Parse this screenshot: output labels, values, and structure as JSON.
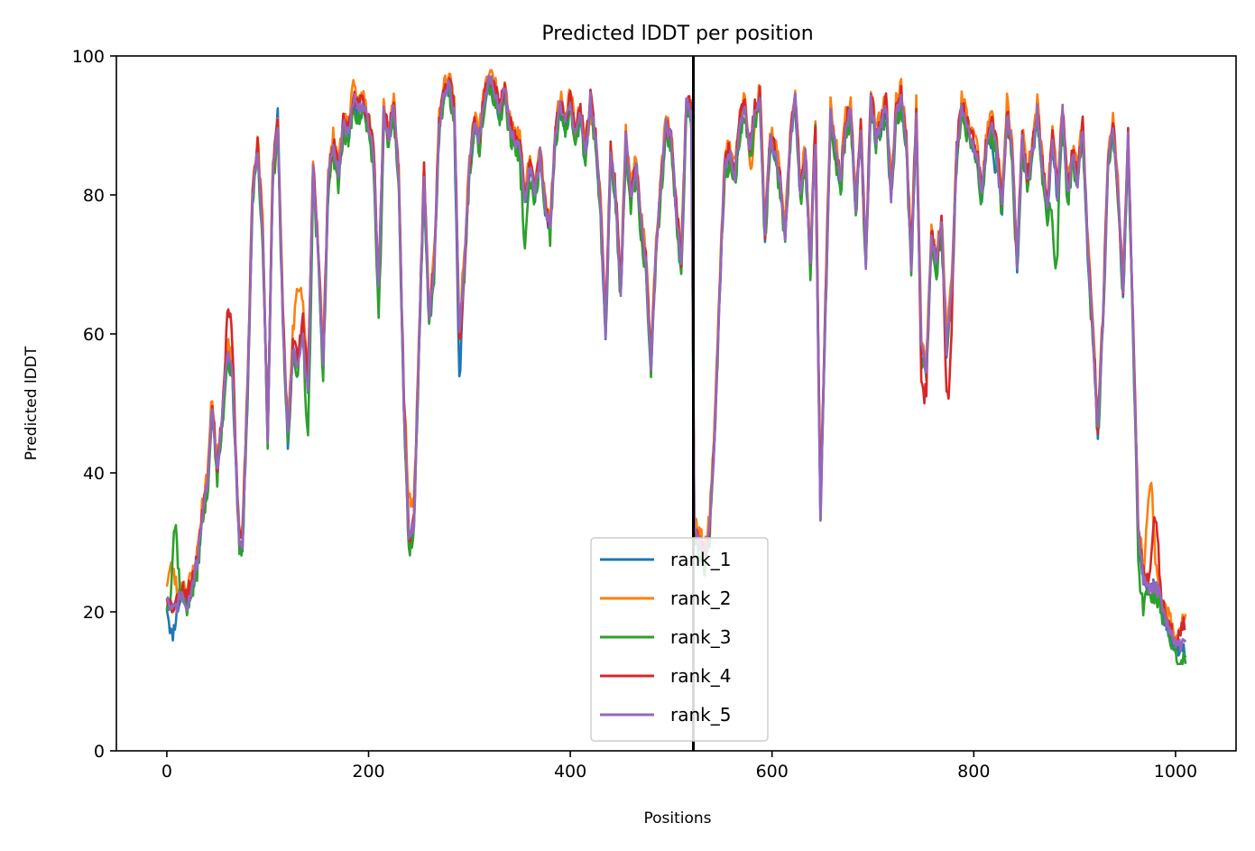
{
  "chart_data": {
    "type": "line",
    "title": "Predicted lDDT per position",
    "xlabel": "Positions",
    "ylabel": "Predicted lDDT",
    "xlim": [
      -50,
      1060
    ],
    "ylim": [
      0,
      100
    ],
    "xticks": [
      0,
      200,
      400,
      600,
      800,
      1000
    ],
    "yticks": [
      0,
      20,
      40,
      60,
      80,
      100
    ],
    "grid": false,
    "legend_position": "bottom-center",
    "chain_break": 522,
    "base_profile": [
      [
        0,
        22
      ],
      [
        5,
        20
      ],
      [
        10,
        21
      ],
      [
        15,
        23
      ],
      [
        20,
        22
      ],
      [
        25,
        24
      ],
      [
        30,
        27
      ],
      [
        35,
        34
      ],
      [
        40,
        38
      ],
      [
        45,
        50
      ],
      [
        50,
        40
      ],
      [
        55,
        48
      ],
      [
        60,
        58
      ],
      [
        65,
        55
      ],
      [
        70,
        36
      ],
      [
        72,
        30
      ],
      [
        75,
        30
      ],
      [
        80,
        52
      ],
      [
        85,
        80
      ],
      [
        90,
        87
      ],
      [
        95,
        75
      ],
      [
        100,
        45
      ],
      [
        105,
        83
      ],
      [
        110,
        90
      ],
      [
        115,
        62
      ],
      [
        120,
        45
      ],
      [
        125,
        58
      ],
      [
        130,
        56
      ],
      [
        135,
        62
      ],
      [
        140,
        52
      ],
      [
        145,
        84
      ],
      [
        150,
        72
      ],
      [
        155,
        55
      ],
      [
        160,
        82
      ],
      [
        165,
        87
      ],
      [
        170,
        83
      ],
      [
        175,
        90
      ],
      [
        180,
        89
      ],
      [
        185,
        94
      ],
      [
        190,
        92
      ],
      [
        195,
        93
      ],
      [
        200,
        90
      ],
      [
        205,
        86
      ],
      [
        210,
        66
      ],
      [
        215,
        92
      ],
      [
        220,
        88
      ],
      [
        225,
        93
      ],
      [
        230,
        82
      ],
      [
        235,
        50
      ],
      [
        240,
        30
      ],
      [
        245,
        33
      ],
      [
        250,
        58
      ],
      [
        255,
        83
      ],
      [
        260,
        62
      ],
      [
        265,
        70
      ],
      [
        270,
        90
      ],
      [
        275,
        95
      ],
      [
        280,
        96
      ],
      [
        285,
        92
      ],
      [
        290,
        60
      ],
      [
        295,
        70
      ],
      [
        300,
        84
      ],
      [
        305,
        90
      ],
      [
        310,
        88
      ],
      [
        315,
        94
      ],
      [
        320,
        97
      ],
      [
        325,
        95
      ],
      [
        330,
        92
      ],
      [
        335,
        95
      ],
      [
        340,
        90
      ],
      [
        345,
        88
      ],
      [
        350,
        87
      ],
      [
        355,
        79
      ],
      [
        360,
        84
      ],
      [
        365,
        80
      ],
      [
        370,
        86
      ],
      [
        375,
        78
      ],
      [
        380,
        75
      ],
      [
        385,
        88
      ],
      [
        390,
        93
      ],
      [
        395,
        90
      ],
      [
        400,
        94
      ],
      [
        405,
        88
      ],
      [
        410,
        92
      ],
      [
        415,
        86
      ],
      [
        420,
        94
      ],
      [
        425,
        88
      ],
      [
        430,
        78
      ],
      [
        435,
        60
      ],
      [
        440,
        86
      ],
      [
        445,
        80
      ],
      [
        450,
        66
      ],
      [
        455,
        88
      ],
      [
        460,
        80
      ],
      [
        465,
        84
      ],
      [
        470,
        76
      ],
      [
        475,
        70
      ],
      [
        480,
        55
      ],
      [
        485,
        72
      ],
      [
        490,
        82
      ],
      [
        495,
        90
      ],
      [
        500,
        88
      ],
      [
        505,
        78
      ],
      [
        510,
        70
      ],
      [
        515,
        93
      ],
      [
        520,
        92
      ],
      [
        523,
        32
      ],
      [
        528,
        30
      ],
      [
        533,
        28
      ],
      [
        538,
        32
      ],
      [
        543,
        45
      ],
      [
        548,
        66
      ],
      [
        553,
        84
      ],
      [
        558,
        86
      ],
      [
        563,
        83
      ],
      [
        568,
        90
      ],
      [
        573,
        93
      ],
      [
        578,
        86
      ],
      [
        583,
        92
      ],
      [
        588,
        94
      ],
      [
        593,
        74
      ],
      [
        598,
        88
      ],
      [
        603,
        86
      ],
      [
        608,
        82
      ],
      [
        613,
        74
      ],
      [
        618,
        88
      ],
      [
        623,
        94
      ],
      [
        628,
        80
      ],
      [
        633,
        86
      ],
      [
        638,
        70
      ],
      [
        643,
        90
      ],
      [
        648,
        34
      ],
      [
        653,
        64
      ],
      [
        658,
        92
      ],
      [
        663,
        86
      ],
      [
        668,
        82
      ],
      [
        673,
        90
      ],
      [
        678,
        92
      ],
      [
        683,
        78
      ],
      [
        688,
        90
      ],
      [
        693,
        70
      ],
      [
        698,
        94
      ],
      [
        703,
        88
      ],
      [
        708,
        90
      ],
      [
        713,
        93
      ],
      [
        718,
        80
      ],
      [
        723,
        92
      ],
      [
        728,
        94
      ],
      [
        733,
        88
      ],
      [
        738,
        70
      ],
      [
        743,
        92
      ],
      [
        748,
        58
      ],
      [
        753,
        55
      ],
      [
        758,
        74
      ],
      [
        763,
        70
      ],
      [
        768,
        76
      ],
      [
        773,
        58
      ],
      [
        778,
        66
      ],
      [
        783,
        86
      ],
      [
        788,
        93
      ],
      [
        793,
        90
      ],
      [
        798,
        88
      ],
      [
        803,
        86
      ],
      [
        808,
        80
      ],
      [
        813,
        88
      ],
      [
        818,
        90
      ],
      [
        823,
        86
      ],
      [
        828,
        78
      ],
      [
        833,
        92
      ],
      [
        838,
        86
      ],
      [
        843,
        70
      ],
      [
        848,
        88
      ],
      [
        853,
        82
      ],
      [
        858,
        86
      ],
      [
        863,
        92
      ],
      [
        868,
        84
      ],
      [
        873,
        78
      ],
      [
        878,
        88
      ],
      [
        883,
        80
      ],
      [
        888,
        92
      ],
      [
        893,
        80
      ],
      [
        898,
        86
      ],
      [
        903,
        82
      ],
      [
        908,
        90
      ],
      [
        913,
        72
      ],
      [
        918,
        60
      ],
      [
        923,
        46
      ],
      [
        928,
        62
      ],
      [
        933,
        84
      ],
      [
        938,
        90
      ],
      [
        943,
        80
      ],
      [
        948,
        66
      ],
      [
        953,
        88
      ],
      [
        958,
        60
      ],
      [
        963,
        32
      ],
      [
        968,
        25
      ],
      [
        973,
        24
      ],
      [
        978,
        24
      ],
      [
        983,
        23
      ],
      [
        988,
        20
      ],
      [
        993,
        18
      ],
      [
        998,
        16
      ],
      [
        1003,
        15
      ],
      [
        1008,
        15
      ],
      [
        1010,
        15
      ]
    ],
    "series": [
      {
        "name": "rank_1",
        "color": "#1f77b4",
        "offset": -0.5,
        "amp": 1.2,
        "seed": 11,
        "bumps": [
          [
            5,
            -3
          ],
          [
            110,
            2
          ],
          [
            290,
            -6
          ],
          [
            465,
            2
          ],
          [
            820,
            -3
          ]
        ]
      },
      {
        "name": "rank_2",
        "color": "#ff7f0e",
        "offset": 1.3,
        "amp": 1.4,
        "seed": 23,
        "bumps": [
          [
            5,
            5
          ],
          [
            130,
            8
          ],
          [
            240,
            4
          ],
          [
            420,
            -3
          ],
          [
            580,
            -5
          ],
          [
            975,
            14
          ],
          [
            1008,
            3
          ]
        ]
      },
      {
        "name": "rank_3",
        "color": "#2ca02c",
        "offset": -1.2,
        "amp": 1.6,
        "seed": 37,
        "bumps": [
          [
            8,
            13
          ],
          [
            140,
            -6
          ],
          [
            210,
            -4
          ],
          [
            355,
            -5
          ],
          [
            880,
            -12
          ],
          [
            965,
            -5
          ],
          [
            1005,
            -2
          ]
        ]
      },
      {
        "name": "rank_4",
        "color": "#d62728",
        "offset": 0.6,
        "amp": 1.3,
        "seed": 53,
        "bumps": [
          [
            62,
            6
          ],
          [
            292,
            -3
          ],
          [
            750,
            -6
          ],
          [
            775,
            -10
          ],
          [
            980,
            9
          ],
          [
            1008,
            3
          ]
        ]
      },
      {
        "name": "rank_5",
        "color": "#9467bd",
        "offset": 0.0,
        "amp": 1.1,
        "seed": 71,
        "bumps": [
          [
            20,
            -2
          ],
          [
            135,
            -3
          ],
          [
            645,
            -3
          ],
          [
            975,
            -1
          ]
        ]
      }
    ]
  }
}
